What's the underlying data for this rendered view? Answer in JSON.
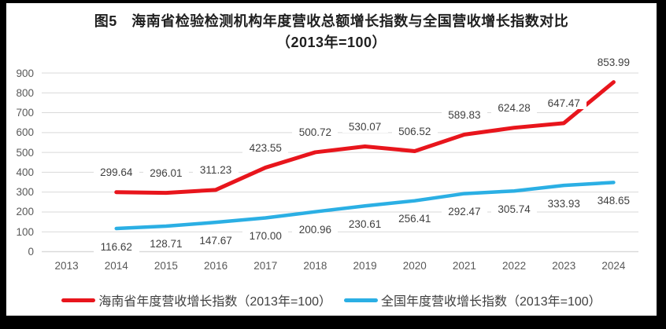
{
  "title": {
    "line1": "图5　海南省检验检测机构年度营收总额增长指数与全国营收增长指数对比",
    "line2": "（2013年=100）"
  },
  "colors": {
    "hainan_red": "#e8151c",
    "national_blue": "#2bafe4",
    "gridline": "#d9d9d9",
    "tick_text": "#595959",
    "label_text": "#3f3f3f",
    "frame": "#000000",
    "background": "#ffffff"
  },
  "chart_data": {
    "type": "line",
    "title": "图5　海南省检验检测机构年度营收总额增长指数与全国营收增长指数对比（2013年=100）",
    "categories": [
      "2013",
      "2014",
      "2015",
      "2016",
      "2017",
      "2018",
      "2019",
      "2020",
      "2021",
      "2022",
      "2023",
      "2024"
    ],
    "series": [
      {
        "name": "海南省年度营收增长指数（2013年=100）",
        "color": "#e8151c",
        "values": [
          null,
          299.64,
          296.01,
          311.23,
          423.55,
          500.72,
          530.07,
          506.52,
          589.83,
          624.28,
          647.47,
          853.99
        ],
        "labels": [
          "",
          "299.64",
          "296.01",
          "311.23",
          "423.55",
          "500.72",
          "530.07",
          "506.52",
          "589.83",
          "624.28",
          "647.47",
          "853.99"
        ],
        "label_side": "above"
      },
      {
        "name": "全国年度营收增长指数（2013年=100）",
        "color": "#2bafe4",
        "values": [
          null,
          116.62,
          128.71,
          147.67,
          170.0,
          200.96,
          230.61,
          256.41,
          292.47,
          305.74,
          333.93,
          348.65
        ],
        "labels": [
          "",
          "116.62",
          "128.71",
          "147.67",
          "170.00",
          "200.96",
          "230.61",
          "256.41",
          "292.47",
          "305.74",
          "333.93",
          "348.65"
        ],
        "label_side": "below"
      }
    ],
    "yticks": [
      "0",
      "100",
      "200",
      "300",
      "400",
      "500",
      "600",
      "700",
      "800",
      "900"
    ],
    "ylim": [
      0,
      900
    ],
    "ytick_step": 100,
    "xlabel": "",
    "ylabel": "",
    "grid": true,
    "legend_position": "bottom"
  },
  "legend": {
    "items": [
      {
        "label": "海南省年度营收增长指数（2013年=100）"
      },
      {
        "label": "全国年度营收增长指数（2013年=100）"
      }
    ]
  }
}
